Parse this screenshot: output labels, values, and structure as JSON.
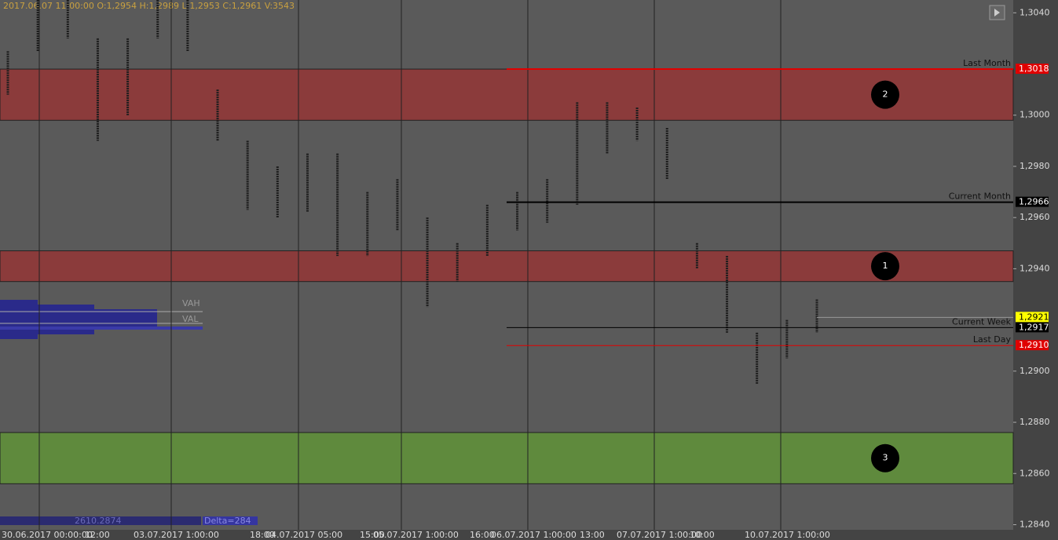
{
  "chart_data": {
    "type": "candlestick",
    "header": "2017.06.07 11:00:00   O:1,2954   H:1,2989   L:1,2953   C:1,2961   V:3543",
    "high": [
      1.3025,
      1.3045,
      1.3045,
      1.303,
      1.303,
      1.3045,
      1.3045,
      1.301,
      1.299,
      1.298,
      1.2985,
      1.2985,
      1.297,
      1.2975,
      1.296,
      1.295,
      1.2965,
      1.297,
      1.2975,
      1.3005,
      1.3005,
      1.3003,
      1.2995,
      1.295,
      1.2945,
      1.2915,
      1.292,
      1.2928
    ],
    "low": [
      1.3008,
      1.3025,
      1.303,
      1.299,
      1.3,
      1.303,
      1.3025,
      1.299,
      1.2963,
      1.296,
      1.2962,
      1.2945,
      1.2945,
      1.2955,
      1.2925,
      1.2935,
      1.2945,
      1.2955,
      1.2958,
      1.2965,
      1.2985,
      1.299,
      1.2975,
      1.294,
      1.2915,
      1.2895,
      1.2905,
      1.2915
    ],
    "bar_color": "#1e1e1e",
    "ylim": [
      1.2838,
      1.3045
    ],
    "yticks": [
      {
        "value": 1.304,
        "label": "1,3040"
      },
      {
        "value": 1.3,
        "label": "1,3000"
      },
      {
        "value": 1.298,
        "label": "1,2980"
      },
      {
        "value": 1.296,
        "label": "1,2960"
      },
      {
        "value": 1.294,
        "label": "1,2940"
      },
      {
        "value": 1.29,
        "label": "1,2900"
      },
      {
        "value": 1.288,
        "label": "1,2880"
      },
      {
        "value": 1.286,
        "label": "1,2860"
      },
      {
        "value": 1.284,
        "label": "1,2840"
      }
    ],
    "zones": [
      {
        "label": "2",
        "low": 1.2998,
        "high": 1.3018,
        "color": "#8b3b3b"
      },
      {
        "label": "1",
        "low": 1.2935,
        "high": 1.2947,
        "color": "#8b3b3b"
      },
      {
        "label": "3",
        "low": 1.2856,
        "high": 1.2876,
        "color": "#5f8a3d"
      }
    ],
    "levels": [
      {
        "name": "Last Month",
        "value": 1.3018,
        "label": "1,3018",
        "color": "#e00000"
      },
      {
        "name": "Current Month",
        "value": 1.2966,
        "label": "1,2966",
        "color": "#000000"
      },
      {
        "name": "Current Week",
        "value": 1.2917,
        "label": "1,2917",
        "color": "#000000"
      },
      {
        "name": "Last Day",
        "value": 1.291,
        "label": "1,2910",
        "color": "#e00000"
      }
    ],
    "current_price": {
      "value": 1.2921,
      "label": "1,2921",
      "color": "#ffff00"
    },
    "time_labels": [
      "30.06.2017 00:00:00",
      "12:00",
      "03.07.2017 1:00:00",
      "18:00",
      "04.07.2017 05:00",
      "15:00",
      "05.07.2017 1:00:00",
      "16:00",
      "06.07.2017 1:00:00",
      "13:00",
      "07.07.2017 1:00:00",
      "10:00",
      "10.07.2017 1:00:00"
    ],
    "profile_labels": [
      "VAH",
      "VAL"
    ],
    "footer": [
      "2610.2874",
      "Delta=284"
    ]
  }
}
